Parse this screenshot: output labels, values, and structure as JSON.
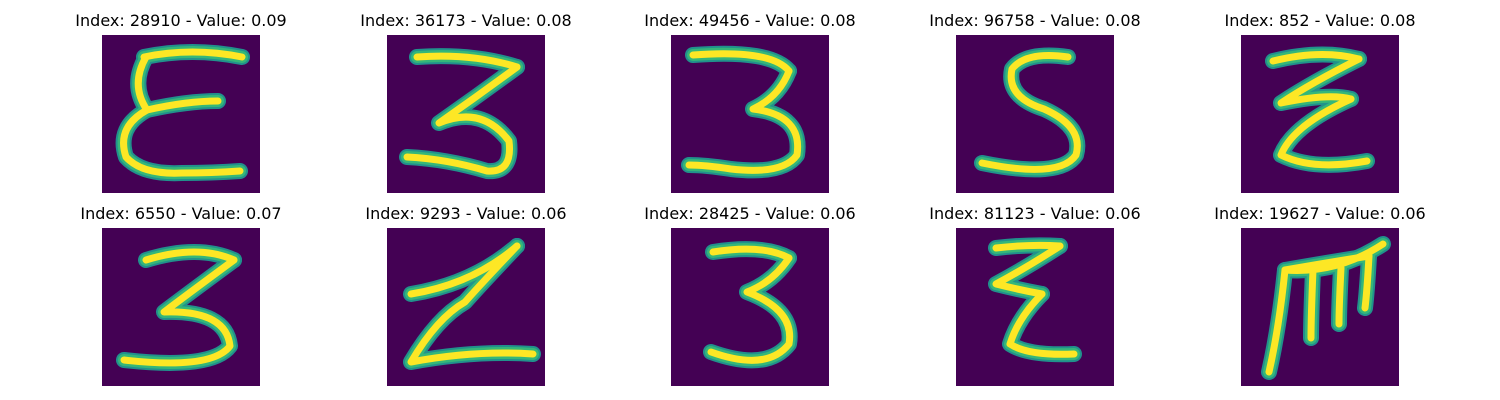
{
  "colors": {
    "background": "#440154",
    "stroke_core": "#fde725",
    "stroke_edge": "#35b779",
    "stroke_halo": "#21918c"
  },
  "panels": [
    {
      "title": "Index: 28910 - Value: 0.09",
      "glyph": "epsilon-e"
    },
    {
      "title": "Index: 36173 - Value: 0.08",
      "glyph": "three-flat"
    },
    {
      "title": "Index: 49456 - Value: 0.08",
      "glyph": "three-wide"
    },
    {
      "title": "Index: 96758 - Value: 0.08",
      "glyph": "five"
    },
    {
      "title": "Index: 852 - Value: 0.08",
      "glyph": "zigzag-z"
    },
    {
      "title": "Index: 6550 - Value: 0.07",
      "glyph": "three-bold"
    },
    {
      "title": "Index: 9293 - Value: 0.06",
      "glyph": "lightning-z"
    },
    {
      "title": "Index: 28425 - Value: 0.06",
      "glyph": "three-round"
    },
    {
      "title": "Index: 81123 - Value: 0.06",
      "glyph": "small-zigzag"
    },
    {
      "title": "Index: 19627 - Value: 0.06",
      "glyph": "sideways-m"
    }
  ]
}
